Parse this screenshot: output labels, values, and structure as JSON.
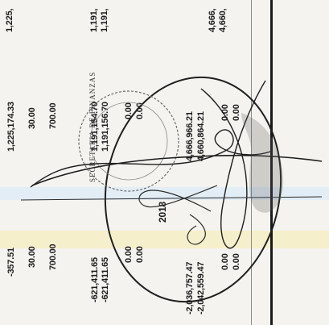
{
  "numbers": {
    "top_a": "1,225,",
    "top_b": "1,191,",
    "top_c": "1,191,",
    "top_d": "4,666,",
    "top_e": "4,660,",
    "c1_a": "1,225,174.33",
    "c1_b": "30.00",
    "c1_c": "700.00",
    "c1_d": "1,191,154.70",
    "c1_e": "1,191,156.70",
    "c1_f": "0.00",
    "c1_g": "0.00",
    "c1_h": "4,666,966.21",
    "c1_i": "4,660,864.21",
    "c1_j": "0.00",
    "c1_k": "0.00",
    "c2_a": "-357.51",
    "c2_b": "30.00",
    "c2_c": "700.00",
    "c2_d": "-621,411.65",
    "c2_e": "-621,411.65",
    "c2_f": "0.00",
    "c2_g": "0.00",
    "c2_h": "-2,036,757.47",
    "c2_i": "-2,042,559.47",
    "c2_j": "0.00",
    "c2_k": "0.00"
  },
  "year_label": "2018",
  "stamp_text": "SECRETARIA DE FINANZAS",
  "colors": {
    "ink": "#1d1d1d",
    "paper": "#f4f3ef",
    "highlight": "#f7efc8",
    "blue_tint": "#dbe8f4"
  }
}
